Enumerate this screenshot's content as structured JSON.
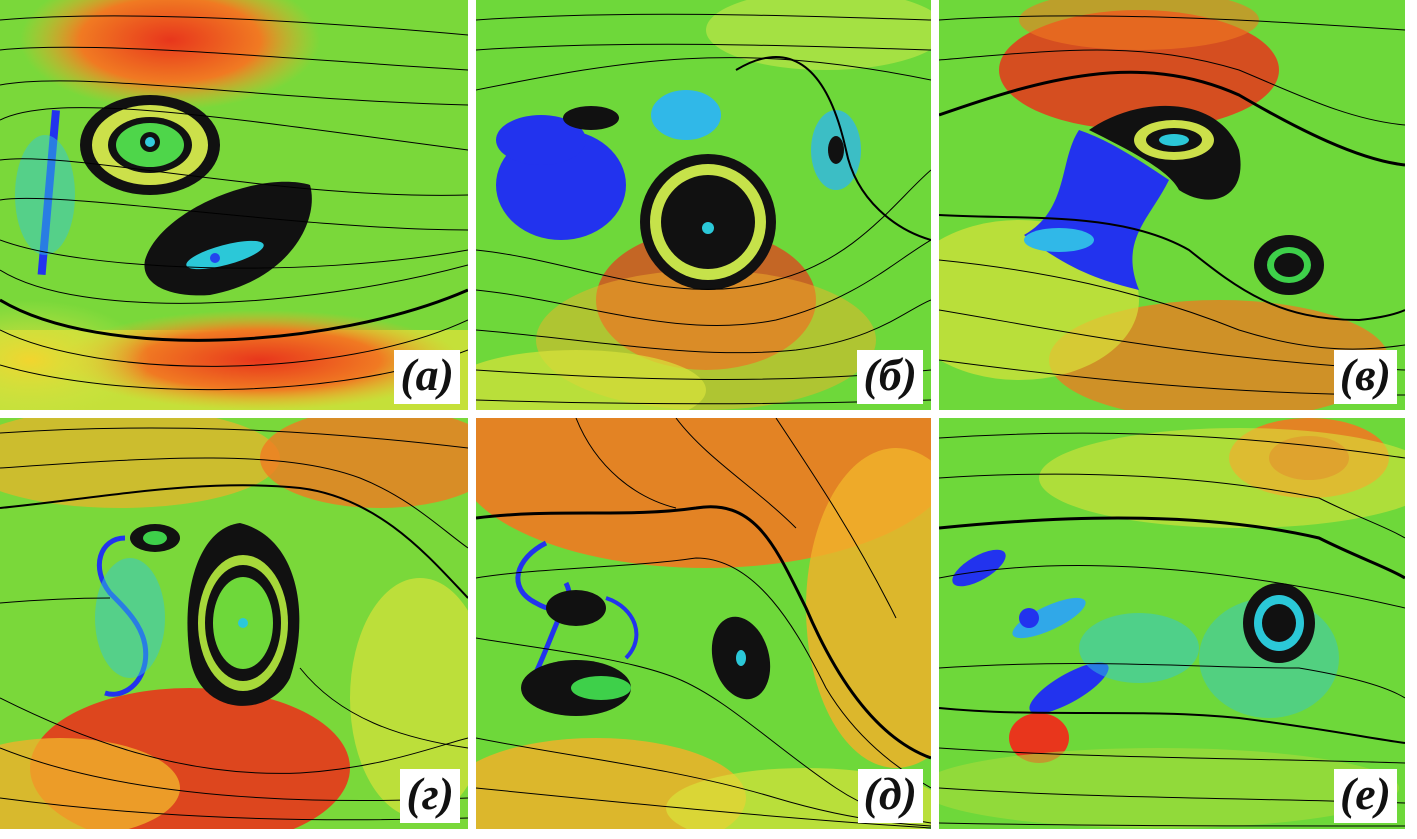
{
  "panels": [
    {
      "label": "(а)"
    },
    {
      "label": "(б)"
    },
    {
      "label": "(в)"
    },
    {
      "label": "(г)"
    },
    {
      "label": "(д)"
    },
    {
      "label": "(е)"
    }
  ],
  "colors": {
    "background_field": "#5fd63a",
    "high": "#e8361c",
    "mid_high": "#f0b22a",
    "mid": "#c8e84a",
    "low": "#30d0e0",
    "lowest": "#2233ee",
    "streamline": "#000000"
  }
}
